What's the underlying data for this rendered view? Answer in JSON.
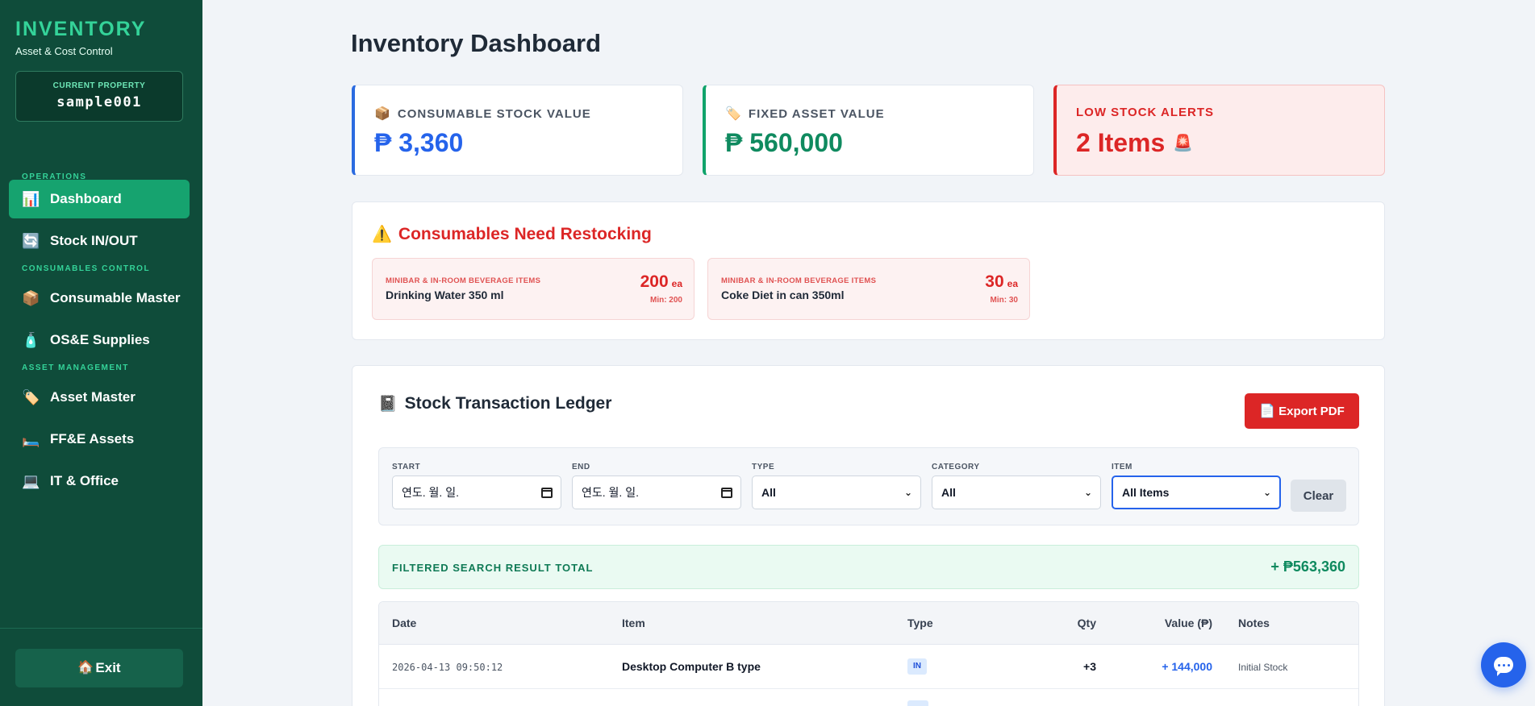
{
  "sidebar": {
    "brand_title": "INVENTORY",
    "brand_subtitle": "Asset & Cost Control",
    "property_label": "CURRENT PROPERTY",
    "property_value": "sample001",
    "sections": {
      "operations": "OPERATIONS",
      "consumables": "CONSUMABLES CONTROL",
      "assets": "ASSET MANAGEMENT"
    },
    "items": [
      {
        "label": "Dashboard",
        "icon": "bar-chart-icon",
        "glyph": "📊"
      },
      {
        "label": "Stock IN/OUT",
        "icon": "refresh-icon",
        "glyph": "🔄"
      },
      {
        "label": "Consumable Master",
        "icon": "package-icon",
        "glyph": "📦"
      },
      {
        "label": "OS&E Supplies",
        "icon": "bottle-icon",
        "glyph": "🧴"
      },
      {
        "label": "Asset Master",
        "icon": "tag-icon",
        "glyph": "🏷️"
      },
      {
        "label": "FF&E Assets",
        "icon": "bed-icon",
        "glyph": "🛏️"
      },
      {
        "label": "IT & Office",
        "icon": "laptop-icon",
        "glyph": "💻"
      }
    ],
    "exit_label": "Exit",
    "exit_glyph": "🏠"
  },
  "main": {
    "title": "Inventory Dashboard",
    "stats": {
      "consumable_label": "CONSUMABLE STOCK VALUE",
      "consumable_glyph": "📦",
      "consumable_value": "₱ 3,360",
      "fixed_label": "FIXED ASSET VALUE",
      "fixed_glyph": "🏷️",
      "fixed_value": "₱ 560,000",
      "low_label": "LOW STOCK ALERTS",
      "low_value": "2 Items",
      "low_glyph": "🚨"
    },
    "restock": {
      "title": "Consumables Need Restocking",
      "title_glyph": "⚠️",
      "items": [
        {
          "category": "MINIBAR & IN-ROOM BEVERAGE ITEMS",
          "name": "Drinking Water 350 ml",
          "qty": "200",
          "unit": "ea",
          "min": "Min: 200"
        },
        {
          "category": "MINIBAR & IN-ROOM BEVERAGE ITEMS",
          "name": "Coke Diet in can 350ml",
          "qty": "30",
          "unit": "ea",
          "min": "Min: 30"
        }
      ]
    },
    "ledger": {
      "title": "Stock Transaction Ledger",
      "title_glyph": "📓",
      "export_label": "Export PDF",
      "export_glyph": "📄",
      "filters": {
        "start_label": "START",
        "start_value": "연도. 월. 일.",
        "end_label": "END",
        "end_value": "연도. 월. 일.",
        "type_label": "TYPE",
        "type_value": "All",
        "category_label": "CATEGORY",
        "category_value": "All",
        "item_label": "ITEM",
        "item_value": "All Items",
        "clear_label": "Clear"
      },
      "total_label": "FILTERED SEARCH RESULT TOTAL",
      "total_value": "+ ₱563,360",
      "columns": [
        "Date",
        "Item",
        "Type",
        "Qty",
        "Value (₱)",
        "Notes"
      ],
      "rows": [
        {
          "date": "2026-04-13 09:50:12",
          "item": "Desktop Computer B type",
          "type": "IN",
          "qty": "+3",
          "value": "+ 144,000",
          "notes": "Initial Stock"
        }
      ]
    }
  },
  "colors": {
    "sidebar_bg": "#0f4c3a",
    "accent_green": "#16a36f",
    "blue": "#2563eb",
    "red": "#dc2626"
  }
}
